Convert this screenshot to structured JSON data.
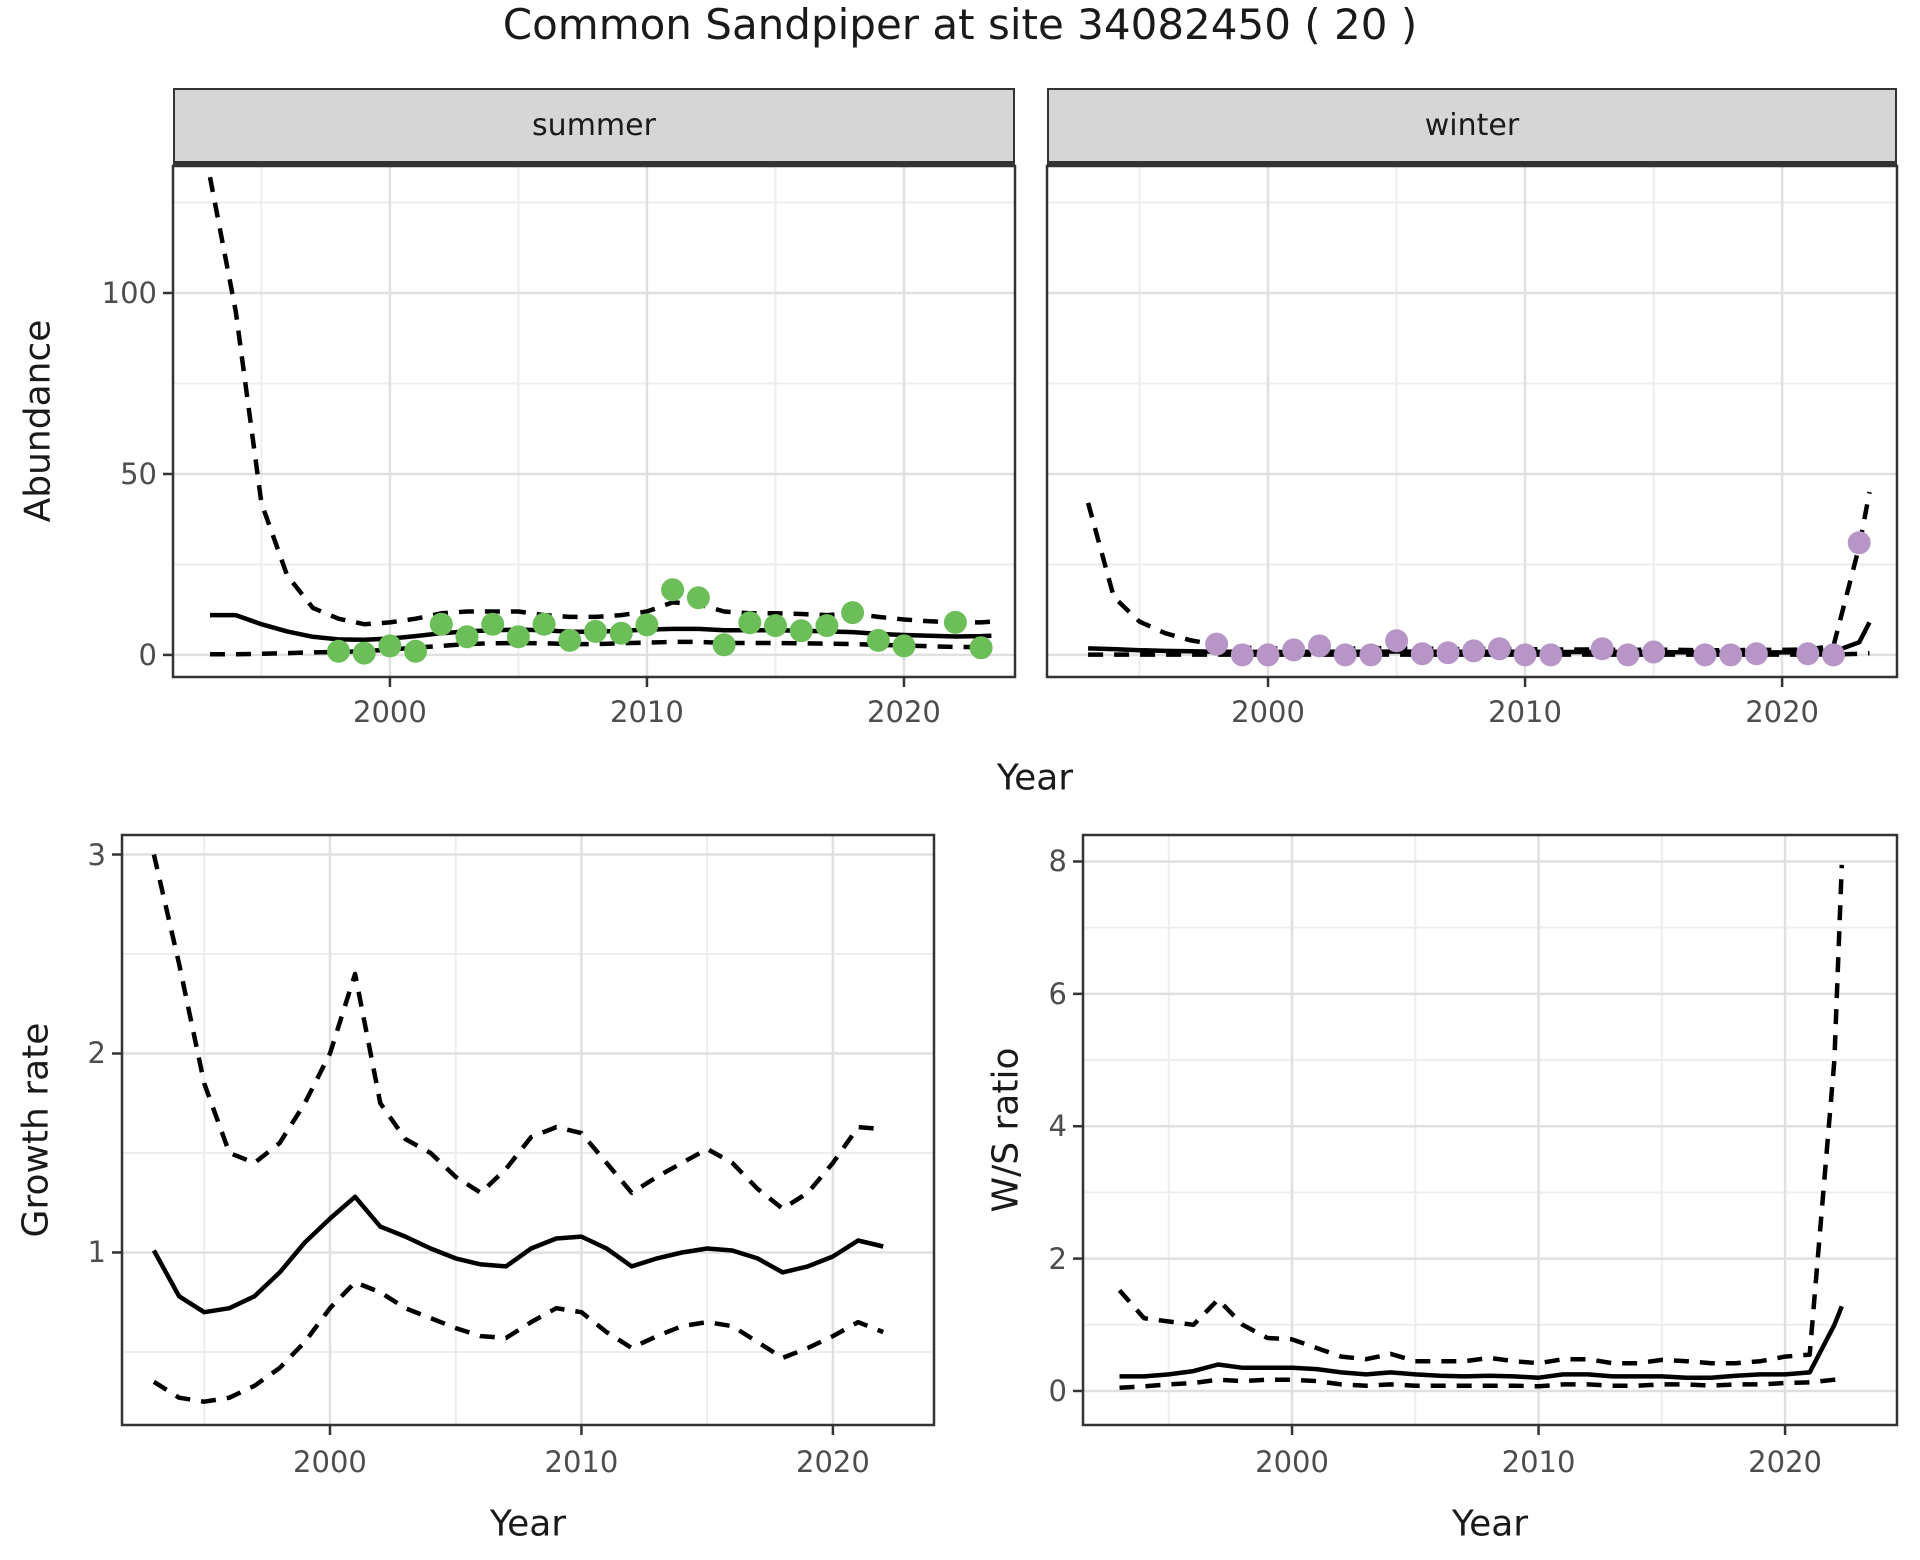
{
  "figure": {
    "title": "Common Sandpiper at site 34082450 ( 20 )",
    "top_row_xlabel": "Year",
    "top_row_ylabel": "Abundance"
  },
  "colors": {
    "summer_point": "#6cbe58",
    "winter_point": "#b795c7",
    "line": "#000000",
    "strip_fill": "#d6d6d6",
    "strip_border": "#333333",
    "grid_major": "#e0e0e0",
    "grid_minor": "#ededed",
    "tick_text": "#4d4d4d",
    "panel_border": "#333333"
  },
  "chart_data": [
    {
      "id": "abundance-summer",
      "type": "line",
      "facet_label": "summer",
      "xlabel": "Year",
      "ylabel": "Abundance",
      "xlim": [
        1991.56,
        2024.32
      ],
      "ylim": [
        -6.1,
        135.1
      ],
      "x_ticks": [
        2000,
        2010,
        2020
      ],
      "x_minor": [
        1995,
        2005,
        2015
      ],
      "y_ticks": [
        0,
        50,
        100
      ],
      "y_minor": [
        25,
        75,
        125
      ],
      "grid": true,
      "series": [
        {
          "name": "upper-ci",
          "style": "dashed",
          "x": [
            1993,
            1994,
            1995,
            1996,
            1997,
            1998,
            1999,
            2000,
            2001,
            2002,
            2003,
            2004,
            2005,
            2006,
            2007,
            2008,
            2009,
            2010,
            2011,
            2012,
            2013,
            2014,
            2015,
            2016,
            2017,
            2018,
            2019,
            2020,
            2021,
            2022,
            2023,
            2023.4
          ],
          "y": [
            132,
            95,
            42,
            22,
            13,
            10,
            8.5,
            9,
            10,
            11.5,
            12,
            12,
            12,
            11,
            10.5,
            10.5,
            11,
            12,
            14.5,
            14,
            12,
            11.5,
            11.5,
            11.3,
            11,
            11.5,
            10.5,
            9.8,
            9.3,
            9,
            9,
            9.2
          ]
        },
        {
          "name": "lower-ci",
          "style": "dashed",
          "x": [
            1993,
            1994,
            1995,
            1996,
            1997,
            1998,
            1999,
            2000,
            2001,
            2002,
            2003,
            2004,
            2005,
            2006,
            2007,
            2008,
            2009,
            2010,
            2011,
            2012,
            2013,
            2014,
            2015,
            2016,
            2017,
            2018,
            2019,
            2020,
            2021,
            2022,
            2023,
            2023.4
          ],
          "y": [
            0.2,
            0.2,
            0.3,
            0.5,
            0.7,
            0.8,
            1,
            1.5,
            2,
            2.5,
            3,
            3.2,
            3.3,
            3.2,
            3,
            3,
            3.2,
            3.4,
            3.6,
            3.6,
            3.3,
            3.3,
            3.3,
            3.2,
            3.1,
            3,
            2.8,
            2.6,
            2.4,
            2.2,
            2.2,
            2.3
          ]
        },
        {
          "name": "median",
          "style": "solid",
          "x": [
            1993,
            1994,
            1995,
            1996,
            1997,
            1998,
            1999,
            2000,
            2001,
            2002,
            2003,
            2004,
            2005,
            2006,
            2007,
            2008,
            2009,
            2010,
            2011,
            2012,
            2013,
            2014,
            2015,
            2016,
            2017,
            2018,
            2019,
            2020,
            2021,
            2022,
            2023,
            2023.4
          ],
          "y": [
            11,
            11,
            8.5,
            6.5,
            5,
            4.3,
            4.2,
            4.5,
            5.2,
            6,
            6.5,
            6.8,
            7,
            6.8,
            6.4,
            6.4,
            6.7,
            7,
            7.2,
            7.2,
            6.8,
            6.8,
            6.8,
            6.7,
            6.5,
            6.3,
            5.8,
            5.5,
            5.3,
            5.1,
            5.2,
            5.3
          ]
        }
      ],
      "points": {
        "name": "observed-abundance-summer",
        "color_key": "summer_point",
        "x": [
          1998,
          1999,
          2000,
          2001,
          2002,
          2003,
          2004,
          2005,
          2006,
          2007,
          2008,
          2009,
          2010,
          2011,
          2012,
          2013,
          2014,
          2015,
          2016,
          2017,
          2018,
          2019,
          2020,
          2022,
          2023
        ],
        "y": [
          1,
          0.5,
          2.5,
          1,
          8.5,
          5,
          8.5,
          5,
          8.5,
          4,
          6.5,
          6,
          8.3,
          18,
          15.8,
          2.8,
          8.9,
          8.1,
          6.7,
          8.1,
          11.7,
          4,
          2.5,
          9,
          2
        ]
      }
    },
    {
      "id": "abundance-winter",
      "type": "line",
      "facet_label": "winter",
      "xlabel": "Year",
      "ylabel": "Abundance",
      "xlim": [
        1991.4,
        2024.47
      ],
      "ylim": [
        -6.1,
        135.1
      ],
      "x_ticks": [
        2000,
        2010,
        2020
      ],
      "x_minor": [
        1995,
        2005,
        2015
      ],
      "y_ticks": [
        0,
        50,
        100
      ],
      "y_minor": [
        25,
        75,
        125
      ],
      "grid": true,
      "series": [
        {
          "name": "upper-ci",
          "style": "dashed",
          "x": [
            1993,
            1994,
            1995,
            1996,
            1997,
            1998,
            1999,
            2000,
            2001,
            2002,
            2003,
            2004,
            2005,
            2006,
            2007,
            2008,
            2009,
            2010,
            2011,
            2012,
            2013,
            2014,
            2015,
            2016,
            2017,
            2018,
            2019,
            2020,
            2021,
            2022,
            2023,
            2023.4
          ],
          "y": [
            42,
            16,
            9.2,
            6,
            4,
            2.8,
            2,
            1.8,
            1.7,
            1.8,
            1.7,
            1.8,
            2,
            1.8,
            1.6,
            1.6,
            1.7,
            1.6,
            1.5,
            1.5,
            1.5,
            1.4,
            1.5,
            1.4,
            1.3,
            1.3,
            1.4,
            1.4,
            1.5,
            2.5,
            30,
            45
          ]
        },
        {
          "name": "lower-ci",
          "style": "dashed",
          "x": [
            1993,
            1994,
            1995,
            1996,
            1997,
            1998,
            1999,
            2000,
            2001,
            2002,
            2003,
            2004,
            2005,
            2006,
            2007,
            2008,
            2009,
            2010,
            2011,
            2012,
            2013,
            2014,
            2015,
            2016,
            2017,
            2018,
            2019,
            2020,
            2021,
            2022,
            2023,
            2023.4
          ],
          "y": [
            0.1,
            0.1,
            0.1,
            0.1,
            0.1,
            0.1,
            0.1,
            0.1,
            0.1,
            0.1,
            0.1,
            0.1,
            0.1,
            0.1,
            0.1,
            0.1,
            0.1,
            0.1,
            0.1,
            0.1,
            0.1,
            0.1,
            0.1,
            0.1,
            0.1,
            0.1,
            0.1,
            0.1,
            0.1,
            0.15,
            0.3,
            0.5
          ]
        },
        {
          "name": "median",
          "style": "solid",
          "x": [
            1993,
            1994,
            1995,
            1996,
            1997,
            1998,
            1999,
            2000,
            2001,
            2002,
            2003,
            2004,
            2005,
            2006,
            2007,
            2008,
            2009,
            2010,
            2011,
            2012,
            2013,
            2014,
            2015,
            2016,
            2017,
            2018,
            2019,
            2020,
            2021,
            2022,
            2023,
            2023.4
          ],
          "y": [
            1.8,
            1.6,
            1.3,
            1.1,
            1,
            0.9,
            0.85,
            0.8,
            0.8,
            0.85,
            0.85,
            0.9,
            0.95,
            0.9,
            0.85,
            0.85,
            0.9,
            0.85,
            0.8,
            0.8,
            0.8,
            0.8,
            0.8,
            0.75,
            0.7,
            0.7,
            0.7,
            0.7,
            0.75,
            0.9,
            3.5,
            9
          ]
        }
      ],
      "points": {
        "name": "observed-abundance-winter",
        "color_key": "winter_point",
        "x": [
          1998,
          1999,
          2000,
          2001,
          2002,
          2003,
          2004,
          2005,
          2006,
          2007,
          2008,
          2009,
          2010,
          2011,
          2013,
          2014,
          2015,
          2017,
          2018,
          2019,
          2021,
          2022,
          2023
        ],
        "y": [
          3,
          0,
          0,
          1.4,
          2.5,
          0,
          0,
          3.9,
          0.3,
          0.6,
          1.1,
          1.7,
          0,
          0,
          1.7,
          0,
          0.8,
          0,
          0,
          0.3,
          0.3,
          0,
          31
        ]
      }
    },
    {
      "id": "growth-rate",
      "type": "line",
      "facet_label": null,
      "xlabel": "Year",
      "ylabel": "Growth rate",
      "xlim": [
        1991.73,
        2024.02
      ],
      "ylim": [
        0.133,
        3.098
      ],
      "x_ticks": [
        2000,
        2010,
        2020
      ],
      "x_minor": [
        1995,
        2005,
        2015
      ],
      "y_ticks": [
        1,
        2,
        3
      ],
      "y_minor": [
        0.5,
        1.5,
        2.5
      ],
      "grid": true,
      "series": [
        {
          "name": "upper-ci",
          "style": "dashed",
          "x": [
            1993,
            1994,
            1995,
            1996,
            1997,
            1998,
            1999,
            2000,
            2001,
            2002,
            2003,
            2004,
            2005,
            2006,
            2007,
            2008,
            2009,
            2010,
            2011,
            2012,
            2013,
            2014,
            2015,
            2016,
            2017,
            2018,
            2019,
            2020,
            2021,
            2022
          ],
          "y": [
            3.0,
            2.45,
            1.85,
            1.5,
            1.45,
            1.55,
            1.75,
            2.0,
            2.4,
            1.75,
            1.57,
            1.5,
            1.38,
            1.3,
            1.42,
            1.58,
            1.63,
            1.6,
            1.45,
            1.3,
            1.38,
            1.45,
            1.52,
            1.45,
            1.32,
            1.22,
            1.3,
            1.45,
            1.63,
            1.62
          ]
        },
        {
          "name": "lower-ci",
          "style": "dashed",
          "x": [
            1993,
            1994,
            1995,
            1996,
            1997,
            1998,
            1999,
            2000,
            2001,
            2002,
            2003,
            2004,
            2005,
            2006,
            2007,
            2008,
            2009,
            2010,
            2011,
            2012,
            2013,
            2014,
            2015,
            2016,
            2017,
            2018,
            2019,
            2020,
            2021,
            2022
          ],
          "y": [
            0.35,
            0.27,
            0.25,
            0.27,
            0.33,
            0.42,
            0.55,
            0.72,
            0.85,
            0.8,
            0.72,
            0.67,
            0.62,
            0.58,
            0.57,
            0.65,
            0.72,
            0.7,
            0.6,
            0.52,
            0.58,
            0.63,
            0.65,
            0.63,
            0.55,
            0.47,
            0.52,
            0.58,
            0.65,
            0.6
          ]
        },
        {
          "name": "median",
          "style": "solid",
          "x": [
            1993,
            1994,
            1995,
            1996,
            1997,
            1998,
            1999,
            2000,
            2001,
            2002,
            2003,
            2004,
            2005,
            2006,
            2007,
            2008,
            2009,
            2010,
            2011,
            2012,
            2013,
            2014,
            2015,
            2016,
            2017,
            2018,
            2019,
            2020,
            2021,
            2022
          ],
          "y": [
            1.01,
            0.78,
            0.7,
            0.72,
            0.78,
            0.9,
            1.05,
            1.17,
            1.28,
            1.13,
            1.08,
            1.02,
            0.97,
            0.94,
            0.93,
            1.02,
            1.07,
            1.08,
            1.02,
            0.93,
            0.97,
            1.0,
            1.02,
            1.01,
            0.97,
            0.9,
            0.93,
            0.98,
            1.06,
            1.03
          ]
        }
      ],
      "points": null
    },
    {
      "id": "ws-ratio",
      "type": "line",
      "facet_label": null,
      "xlabel": "Year",
      "ylabel": "W/S ratio",
      "xlim": [
        1991.52,
        2024.54
      ],
      "ylim": [
        -0.514,
        8.4
      ],
      "x_ticks": [
        2000,
        2010,
        2020
      ],
      "x_minor": [
        1995,
        2005,
        2015
      ],
      "y_ticks": [
        0,
        2,
        4,
        6,
        8
      ],
      "y_minor": [
        1,
        3,
        5,
        7
      ],
      "grid": true,
      "series": [
        {
          "name": "upper-ci",
          "style": "dashed",
          "x": [
            1993,
            1994,
            1995,
            1996,
            1997,
            1998,
            1999,
            2000,
            2001,
            2002,
            2003,
            2004,
            2005,
            2006,
            2007,
            2008,
            2009,
            2010,
            2011,
            2012,
            2013,
            2014,
            2015,
            2016,
            2017,
            2018,
            2019,
            2020,
            2021,
            2022,
            2022.3
          ],
          "y": [
            1.52,
            1.1,
            1.05,
            1.0,
            1.38,
            1.0,
            0.8,
            0.78,
            0.65,
            0.52,
            0.48,
            0.56,
            0.45,
            0.45,
            0.45,
            0.5,
            0.45,
            0.42,
            0.48,
            0.48,
            0.42,
            0.42,
            0.47,
            0.45,
            0.42,
            0.42,
            0.45,
            0.52,
            0.55,
            5.0,
            7.95
          ]
        },
        {
          "name": "lower-ci",
          "style": "dashed",
          "x": [
            1993,
            1994,
            1995,
            1996,
            1997,
            1998,
            1999,
            2000,
            2001,
            2002,
            2003,
            2004,
            2005,
            2006,
            2007,
            2008,
            2009,
            2010,
            2011,
            2012,
            2013,
            2014,
            2015,
            2016,
            2017,
            2018,
            2019,
            2020,
            2021,
            2022,
            2022.3
          ],
          "y": [
            0.05,
            0.07,
            0.1,
            0.12,
            0.17,
            0.15,
            0.17,
            0.17,
            0.15,
            0.1,
            0.08,
            0.1,
            0.08,
            0.08,
            0.08,
            0.08,
            0.08,
            0.07,
            0.1,
            0.1,
            0.08,
            0.08,
            0.1,
            0.1,
            0.08,
            0.1,
            0.1,
            0.12,
            0.13,
            0.17,
            0.18
          ]
        },
        {
          "name": "median",
          "style": "solid",
          "x": [
            1993,
            1994,
            1995,
            1996,
            1997,
            1998,
            1999,
            2000,
            2001,
            2002,
            2003,
            2004,
            2005,
            2006,
            2007,
            2008,
            2009,
            2010,
            2011,
            2012,
            2013,
            2014,
            2015,
            2016,
            2017,
            2018,
            2019,
            2020,
            2021,
            2022,
            2022.3
          ],
          "y": [
            0.22,
            0.22,
            0.25,
            0.3,
            0.4,
            0.35,
            0.35,
            0.35,
            0.33,
            0.28,
            0.25,
            0.28,
            0.25,
            0.23,
            0.22,
            0.23,
            0.22,
            0.2,
            0.25,
            0.25,
            0.22,
            0.22,
            0.22,
            0.2,
            0.2,
            0.23,
            0.25,
            0.25,
            0.28,
            1.0,
            1.28
          ]
        }
      ],
      "points": null
    }
  ]
}
